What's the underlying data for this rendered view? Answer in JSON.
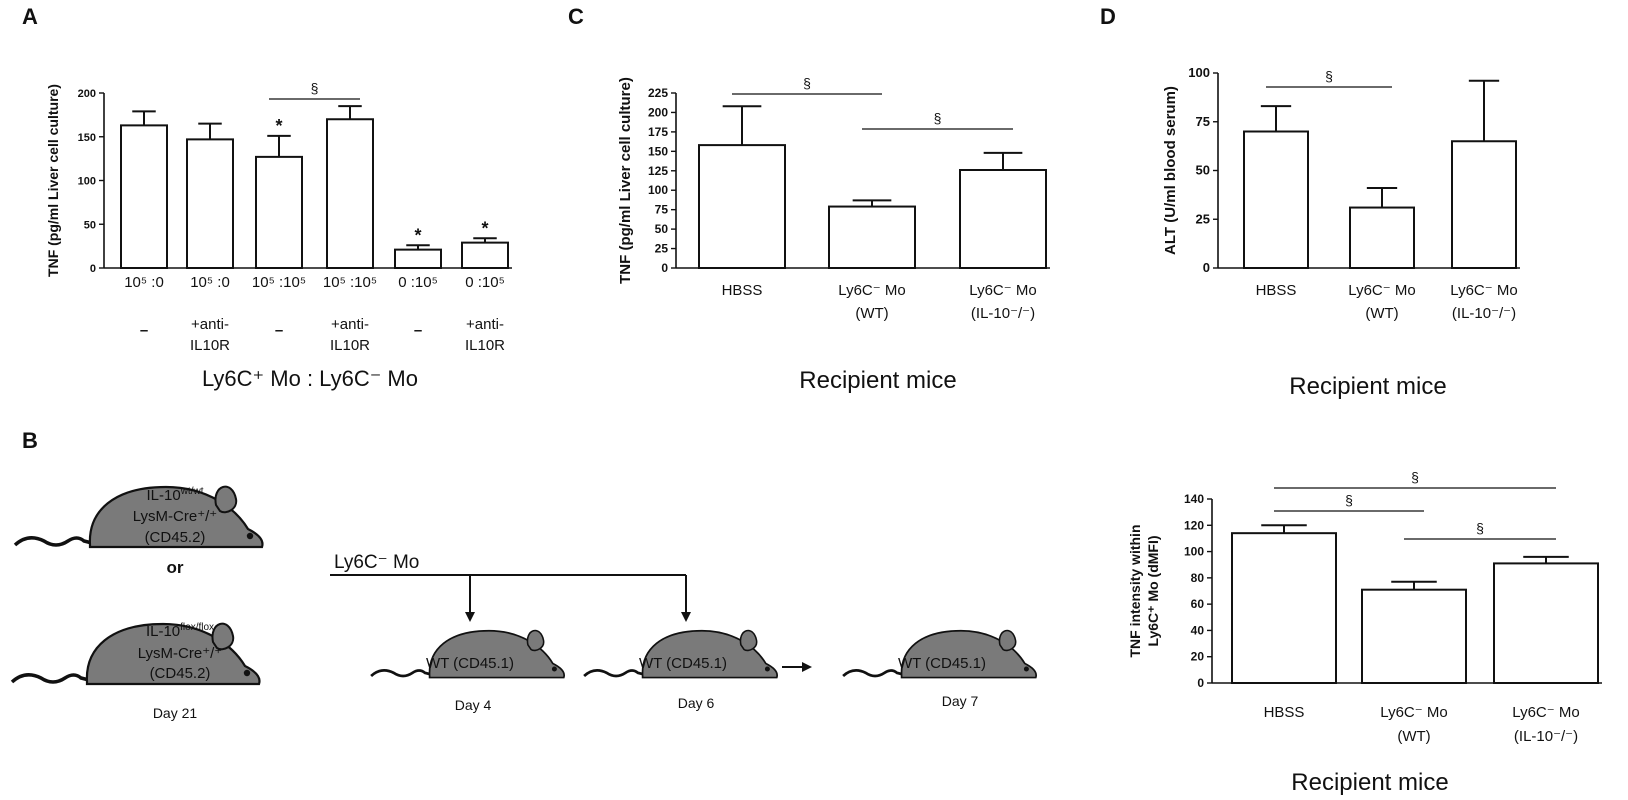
{
  "panel_labels": {
    "a": "A",
    "b": "B",
    "c": "C",
    "d": "D"
  },
  "chart_data": [
    {
      "id": "A",
      "type": "bar",
      "ylabel": "TNF (pg/ml Liver cell culture)",
      "ylim": [
        0,
        200
      ],
      "yticks": [
        "0",
        "50",
        "100",
        "150",
        "200"
      ],
      "ytick_values": [
        0,
        50,
        100,
        150,
        200
      ],
      "xlabel": "Ly6C⁺ Mo : Ly6C⁻ Mo",
      "categories": [
        {
          "ratio": "10⁵ :0",
          "treat1": "–",
          "treat2": ""
        },
        {
          "ratio": "10⁵ :0",
          "treat1": "+anti-",
          "treat2": "IL10R"
        },
        {
          "ratio": "10⁵ :10⁵",
          "treat1": "–",
          "treat2": ""
        },
        {
          "ratio": "10⁵ :10⁵",
          "treat1": "+anti-",
          "treat2": "IL10R"
        },
        {
          "ratio": "0 :10⁵",
          "treat1": "–",
          "treat2": ""
        },
        {
          "ratio": "0 :10⁵",
          "treat1": "+anti-",
          "treat2": "IL10R"
        }
      ],
      "values": [
        163,
        147,
        127,
        170,
        21,
        29
      ],
      "errors": [
        16,
        18,
        24,
        15,
        5,
        5
      ],
      "annotations": [
        {
          "bar": 2,
          "text": "*"
        },
        {
          "bar": 4,
          "text": "*"
        },
        {
          "bar": 5,
          "text": "*"
        }
      ],
      "brackets": [
        {
          "from": 2,
          "to": 3,
          "text": "§"
        }
      ]
    },
    {
      "id": "C",
      "type": "bar",
      "ylabel": "TNF (pg/ml Liver cell culture)",
      "ylim": [
        0,
        225
      ],
      "yticks": [
        "0",
        "25",
        "50",
        "75",
        "100",
        "125",
        "150",
        "175",
        "200",
        "225"
      ],
      "ytick_values": [
        0,
        25,
        50,
        75,
        100,
        125,
        150,
        175,
        200,
        225
      ],
      "xlabel": "Recipient mice",
      "categories": [
        {
          "line1": "HBSS",
          "line2": ""
        },
        {
          "line1": "Ly6C⁻ Mo",
          "line2": "(WT)"
        },
        {
          "line1": "Ly6C⁻ Mo",
          "line2": "(IL-10⁻/⁻)"
        }
      ],
      "values": [
        158,
        79,
        126
      ],
      "errors": [
        50,
        8,
        22
      ],
      "brackets": [
        {
          "from": 0,
          "to": 1,
          "text": "§"
        },
        {
          "from": 1,
          "to": 2,
          "text": "§"
        }
      ]
    },
    {
      "id": "D",
      "type": "bar",
      "ylabel": "ALT (U/ml blood serum)",
      "ylim": [
        0,
        100
      ],
      "yticks": [
        "0",
        "25",
        "50",
        "75",
        "100"
      ],
      "ytick_values": [
        0,
        25,
        50,
        75,
        100
      ],
      "xlabel": "Recipient mice",
      "categories": [
        {
          "line1": "HBSS",
          "line2": ""
        },
        {
          "line1": "Ly6C⁻ Mo",
          "line2": "(WT)"
        },
        {
          "line1": "Ly6C⁻ Mo",
          "line2": "(IL-10⁻/⁻)"
        }
      ],
      "values": [
        70,
        31,
        65
      ],
      "errors": [
        13,
        10,
        31
      ],
      "brackets": [
        {
          "from": 0,
          "to": 1,
          "text": "§"
        }
      ]
    },
    {
      "id": "E",
      "type": "bar",
      "ylabel_line1": "TNF intensity within",
      "ylabel_line2": "Ly6C⁺ Mo (dMFI)",
      "ylim": [
        0,
        140
      ],
      "yticks": [
        "0",
        "20",
        "40",
        "60",
        "80",
        "100",
        "120",
        "140"
      ],
      "ytick_values": [
        0,
        20,
        40,
        60,
        80,
        100,
        120,
        140
      ],
      "xlabel": "Recipient mice",
      "categories": [
        {
          "line1": "HBSS",
          "line2": ""
        },
        {
          "line1": "Ly6C⁻ Mo",
          "line2": "(WT)"
        },
        {
          "line1": "Ly6C⁻ Mo",
          "line2": "(IL-10⁻/⁻)"
        }
      ],
      "values": [
        114,
        71,
        91
      ],
      "errors": [
        6,
        6,
        5
      ],
      "brackets": [
        {
          "from": 0,
          "to": 1,
          "text": "§"
        },
        {
          "from": 1,
          "to": 2,
          "text": "§"
        },
        {
          "from": 0,
          "to": 2,
          "text": "§"
        }
      ]
    }
  ],
  "diagram_b": {
    "donor1_line1": "IL-10",
    "donor1_sup": "wt/wt",
    "donor1_line2": "LysM-Cre⁺/⁺",
    "donor1_line3": "(CD45.2)",
    "or_label": "or",
    "donor2_line1": "IL-10",
    "donor2_sup": "flox/flox",
    "donor2_line2": "LysM-Cre⁺/⁺",
    "donor2_line3": "(CD45.2)",
    "donor_day": "Day 21",
    "transfer_label": "Ly6C⁻ Mo",
    "recipient_label": "WT (CD45.1)",
    "day4": "Day 4",
    "day6": "Day 6",
    "day7": "Day 7"
  }
}
